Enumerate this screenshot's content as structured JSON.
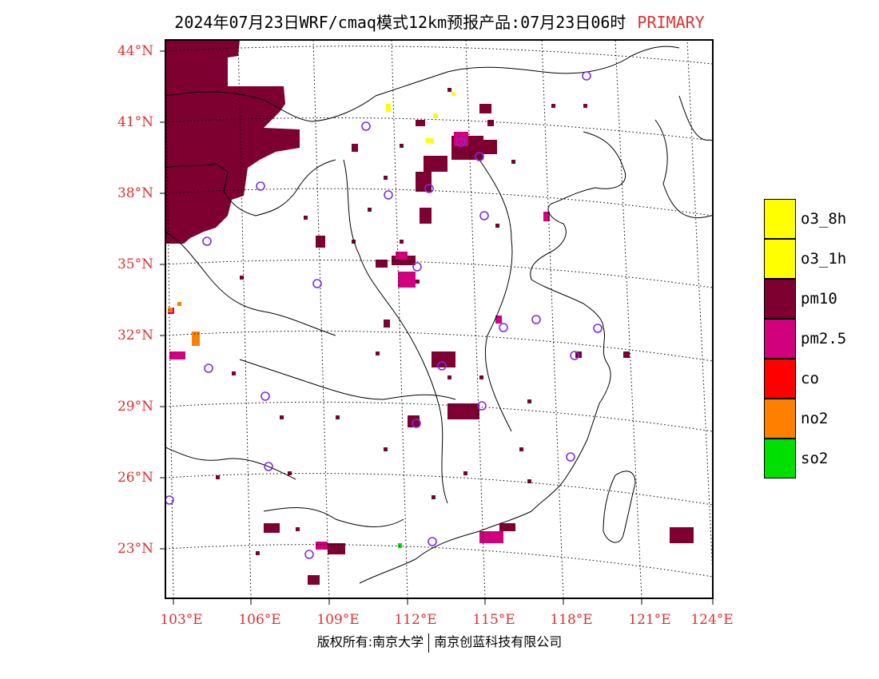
{
  "title": {
    "main": "2024年07月23日WRF/cmaq模式12km预报产品:07月23日06时",
    "tag": "PRIMARY"
  },
  "lat_labels": [
    "44°N",
    "41°N",
    "38°N",
    "35°N",
    "32°N",
    "29°N",
    "26°N",
    "23°N"
  ],
  "lon_labels": [
    "103°E",
    "106°E",
    "109°E",
    "112°E",
    "115°E",
    "118°E",
    "121°E",
    "124°E"
  ],
  "legend": [
    {
      "label": "o3_8h",
      "color": "#ffff00"
    },
    {
      "label": "o3_1h",
      "color": "#ffff00"
    },
    {
      "label": "pm10",
      "color": "#7d0031"
    },
    {
      "label": "pm2.5",
      "color": "#d1007c"
    },
    {
      "label": "co",
      "color": "#ff0000"
    },
    {
      "label": "no2",
      "color": "#ff7f00"
    },
    {
      "label": "so2",
      "color": "#00e000"
    }
  ],
  "copyright": {
    "left": "版权所有:南京大学",
    "right": "南京创蓝科技有限公司"
  }
}
